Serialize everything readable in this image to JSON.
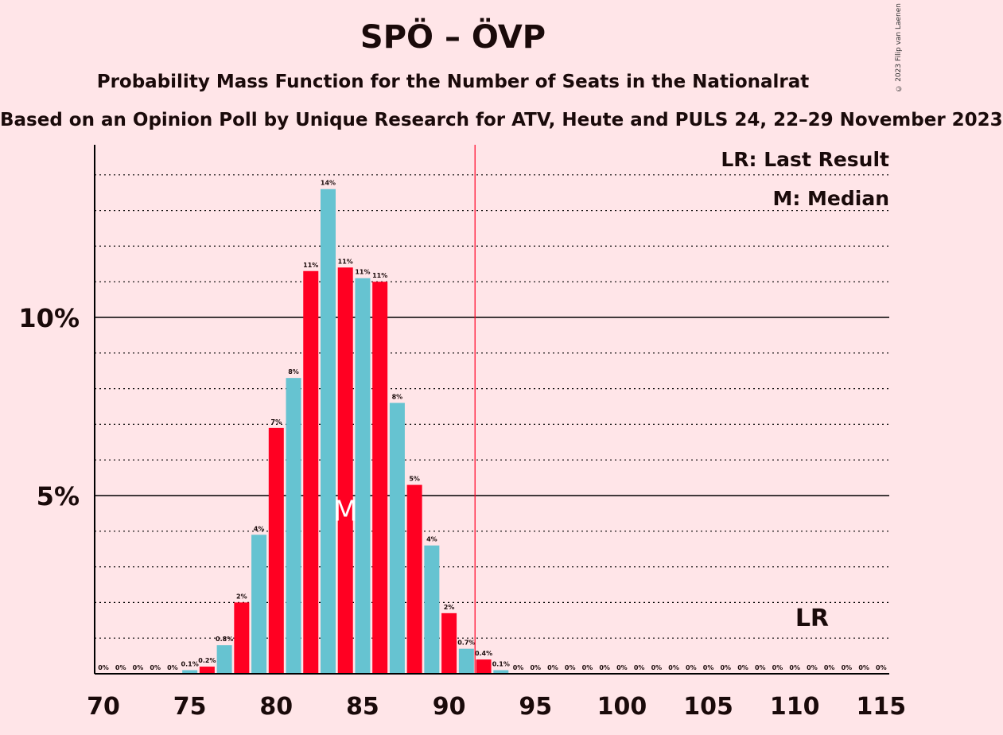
{
  "header": {
    "title": "SPÖ – ÖVP",
    "subtitle": "Probability Mass Function for the Number of Seats in the Nationalrat",
    "source": "Based on an Opinion Poll by Unique Research for ATV, Heute and PULS 24, 22–29 November 2023",
    "copyright": "© 2023 Filip van Laenen"
  },
  "legend": {
    "lr": "LR: Last Result",
    "m": "M: Median"
  },
  "colors": {
    "red": "#FF0022",
    "blue": "#66C3D1",
    "background": "#FFE5E8"
  },
  "chart_data": {
    "type": "bar",
    "x": [
      70,
      71,
      72,
      73,
      74,
      75,
      76,
      77,
      78,
      79,
      80,
      81,
      82,
      83,
      84,
      85,
      86,
      87,
      88,
      89,
      90,
      91,
      92,
      93,
      94,
      95,
      96,
      97,
      98,
      99,
      100,
      101,
      102,
      103,
      104,
      105,
      106,
      107,
      108,
      109,
      110,
      111,
      112,
      113,
      114,
      115
    ],
    "values": [
      0,
      0,
      0,
      0,
      0,
      0.1,
      0.2,
      0.8,
      2.0,
      3.9,
      6.9,
      8.3,
      11.3,
      13.6,
      11.4,
      11.1,
      11.0,
      7.6,
      5.3,
      3.6,
      1.7,
      0.7,
      0.4,
      0.1,
      0,
      0,
      0,
      0,
      0,
      0,
      0,
      0,
      0,
      0,
      0,
      0,
      0,
      0,
      0,
      0,
      0,
      0,
      0,
      0,
      0,
      0
    ],
    "labels": [
      "0%",
      "0%",
      "0%",
      "0%",
      "0%",
      "0.1%",
      "0.2%",
      "0.8%",
      "2%",
      "4%",
      "7%",
      "8%",
      "11%",
      "14%",
      "11%",
      "11%",
      "11%",
      "8%",
      "5%",
      "4%",
      "2%",
      "0.7%",
      "0.4%",
      "0.1%",
      "0%",
      "0%",
      "0%",
      "0%",
      "0%",
      "0%",
      "0%",
      "0%",
      "0%",
      "0%",
      "0%",
      "0%",
      "0%",
      "0%",
      "0%",
      "0%",
      "0%",
      "0%",
      "0%",
      "0%",
      "0%",
      "0%"
    ],
    "x_ticks": [
      "70",
      "75",
      "80",
      "85",
      "90",
      "95",
      "100",
      "105",
      "110",
      "115"
    ],
    "y_ticks": [
      "5%",
      "10%"
    ],
    "ylim": [
      0,
      14.8
    ],
    "majority_line": 91.5,
    "median": 84,
    "median_label": "M",
    "last_result": 111,
    "last_result_label": "LR"
  }
}
